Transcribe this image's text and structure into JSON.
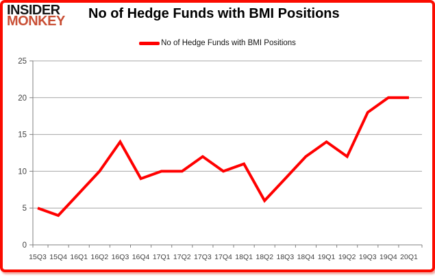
{
  "brand": {
    "line1": "INSIDER",
    "line2": "MONKEY",
    "monkey_color": "#c94f35"
  },
  "header": {
    "title": "No of Hedge Funds with BMI Positions"
  },
  "legend": {
    "label": "No of Hedge Funds with BMI Positions",
    "line_color": "#ff0000"
  },
  "frame": {
    "border_color": "#fb0b00"
  },
  "chart_data": {
    "type": "line",
    "title": "No of Hedge Funds with BMI Positions",
    "categories": [
      "15Q3",
      "15Q4",
      "16Q1",
      "16Q2",
      "16Q3",
      "16Q4",
      "17Q1",
      "17Q2",
      "17Q3",
      "17Q4",
      "18Q1",
      "18Q2",
      "18Q3",
      "18Q4",
      "19Q1",
      "19Q2",
      "19Q3",
      "19Q4",
      "20Q1"
    ],
    "series": [
      {
        "name": "No of Hedge Funds with BMI Positions",
        "color": "#ff0000",
        "values": [
          5,
          4,
          7,
          10,
          14,
          9,
          10,
          10,
          12,
          10,
          11,
          6,
          9,
          12,
          14,
          12,
          18,
          20,
          20
        ]
      }
    ],
    "ylim": [
      0,
      25
    ],
    "yticks": [
      0,
      5,
      10,
      15,
      20,
      25
    ],
    "grid": true,
    "legend_position": "top-center",
    "gridline_color": "#a6a6a6",
    "axis_color": "#808080",
    "axis_text_color": "#404040",
    "line_width": 4
  }
}
